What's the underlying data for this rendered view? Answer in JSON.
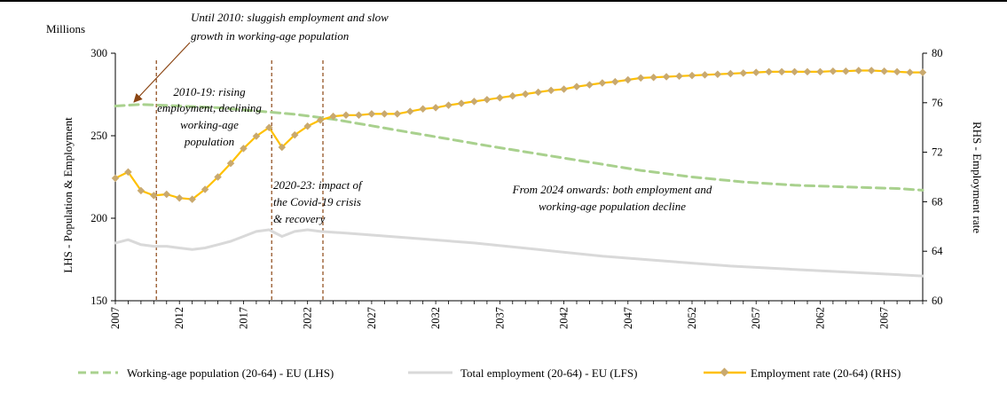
{
  "chart_data": {
    "type": "line",
    "left_unit": "Millions",
    "ylabel_left": "LHS - Population & Employment",
    "ylabel_right": "RHS - Employment rate",
    "ylim_left": [
      150,
      300
    ],
    "yticks_left": [
      150,
      200,
      250,
      300
    ],
    "ylim_right": [
      60,
      80
    ],
    "yticks_right": [
      60,
      64,
      68,
      72,
      76,
      80
    ],
    "xlim": [
      2007,
      2070
    ],
    "xticks": [
      2007,
      2012,
      2017,
      2022,
      2027,
      2032,
      2037,
      2042,
      2047,
      2052,
      2057,
      2062,
      2067
    ],
    "vertical_markers": [
      2010,
      2019,
      2023
    ],
    "series": [
      {
        "name": "Working-age population (20-64) - EU (LHS)",
        "axis": "left",
        "color": "#a9d18e",
        "x": [
          2007,
          2009,
          2012,
          2015,
          2018,
          2021,
          2024,
          2027,
          2030,
          2033,
          2036,
          2040,
          2044,
          2048,
          2052,
          2056,
          2060,
          2064,
          2068,
          2070
        ],
        "values": [
          268,
          269,
          268,
          267,
          265,
          263,
          260,
          256,
          252,
          248,
          244,
          239,
          234,
          229,
          225,
          222,
          220,
          219,
          218,
          217
        ]
      },
      {
        "name": "Total employment (20-64) - EU (LFS)",
        "axis": "left",
        "color": "#d9d9d9",
        "x": [
          2007,
          2008,
          2009,
          2010,
          2011,
          2012,
          2013,
          2014,
          2015,
          2016,
          2017,
          2018,
          2019,
          2020,
          2021,
          2022,
          2023,
          2025,
          2030,
          2035,
          2040,
          2045,
          2050,
          2055,
          2060,
          2065,
          2070
        ],
        "values": [
          185,
          187,
          184,
          183,
          183,
          182,
          181,
          182,
          184,
          186,
          189,
          192,
          193,
          189,
          192,
          193,
          192,
          191,
          188,
          185,
          181,
          177,
          174,
          171,
          169,
          167,
          165
        ]
      },
      {
        "name": "Employment rate (20-64) (RHS)",
        "axis": "right",
        "color": "#ffc000",
        "marker_color": "#c9a96e",
        "x": [
          2007,
          2008,
          2009,
          2010,
          2011,
          2012,
          2013,
          2014,
          2015,
          2016,
          2017,
          2018,
          2019,
          2020,
          2021,
          2022,
          2023,
          2024,
          2025,
          2026,
          2027,
          2028,
          2029,
          2030,
          2031,
          2032,
          2033,
          2034,
          2035,
          2036,
          2037,
          2038,
          2039,
          2040,
          2041,
          2042,
          2043,
          2044,
          2045,
          2046,
          2047,
          2048,
          2049,
          2050,
          2051,
          2052,
          2053,
          2054,
          2055,
          2056,
          2057,
          2058,
          2059,
          2060,
          2061,
          2062,
          2063,
          2064,
          2065,
          2066,
          2067,
          2068,
          2069,
          2070
        ],
        "values": [
          69.9,
          70.4,
          68.9,
          68.5,
          68.6,
          68.3,
          68.2,
          69.0,
          70.0,
          71.1,
          72.3,
          73.3,
          74.0,
          72.4,
          73.4,
          74.1,
          74.6,
          74.9,
          75.0,
          75.0,
          75.1,
          75.1,
          75.1,
          75.3,
          75.5,
          75.6,
          75.8,
          75.95,
          76.1,
          76.25,
          76.4,
          76.55,
          76.7,
          76.85,
          77.0,
          77.1,
          77.3,
          77.45,
          77.6,
          77.7,
          77.85,
          78.0,
          78.05,
          78.1,
          78.15,
          78.2,
          78.25,
          78.3,
          78.35,
          78.4,
          78.45,
          78.5,
          78.5,
          78.5,
          78.5,
          78.5,
          78.55,
          78.55,
          78.6,
          78.6,
          78.55,
          78.5,
          78.45,
          78.45
        ]
      }
    ],
    "annotations": [
      {
        "lines": [
          "Until 2010: sluggish employment and slow",
          "growth in working-age population"
        ]
      },
      {
        "lines": [
          "2010-19: rising",
          "employment, declining",
          "working-age",
          "population"
        ]
      },
      {
        "lines": [
          "2020-23: impact of",
          "the Covid-19 crisis",
          "& recovery"
        ]
      },
      {
        "lines": [
          "From 2024 onwards: both employment and",
          "working-age population decline"
        ]
      }
    ],
    "legend_position": "bottom"
  }
}
